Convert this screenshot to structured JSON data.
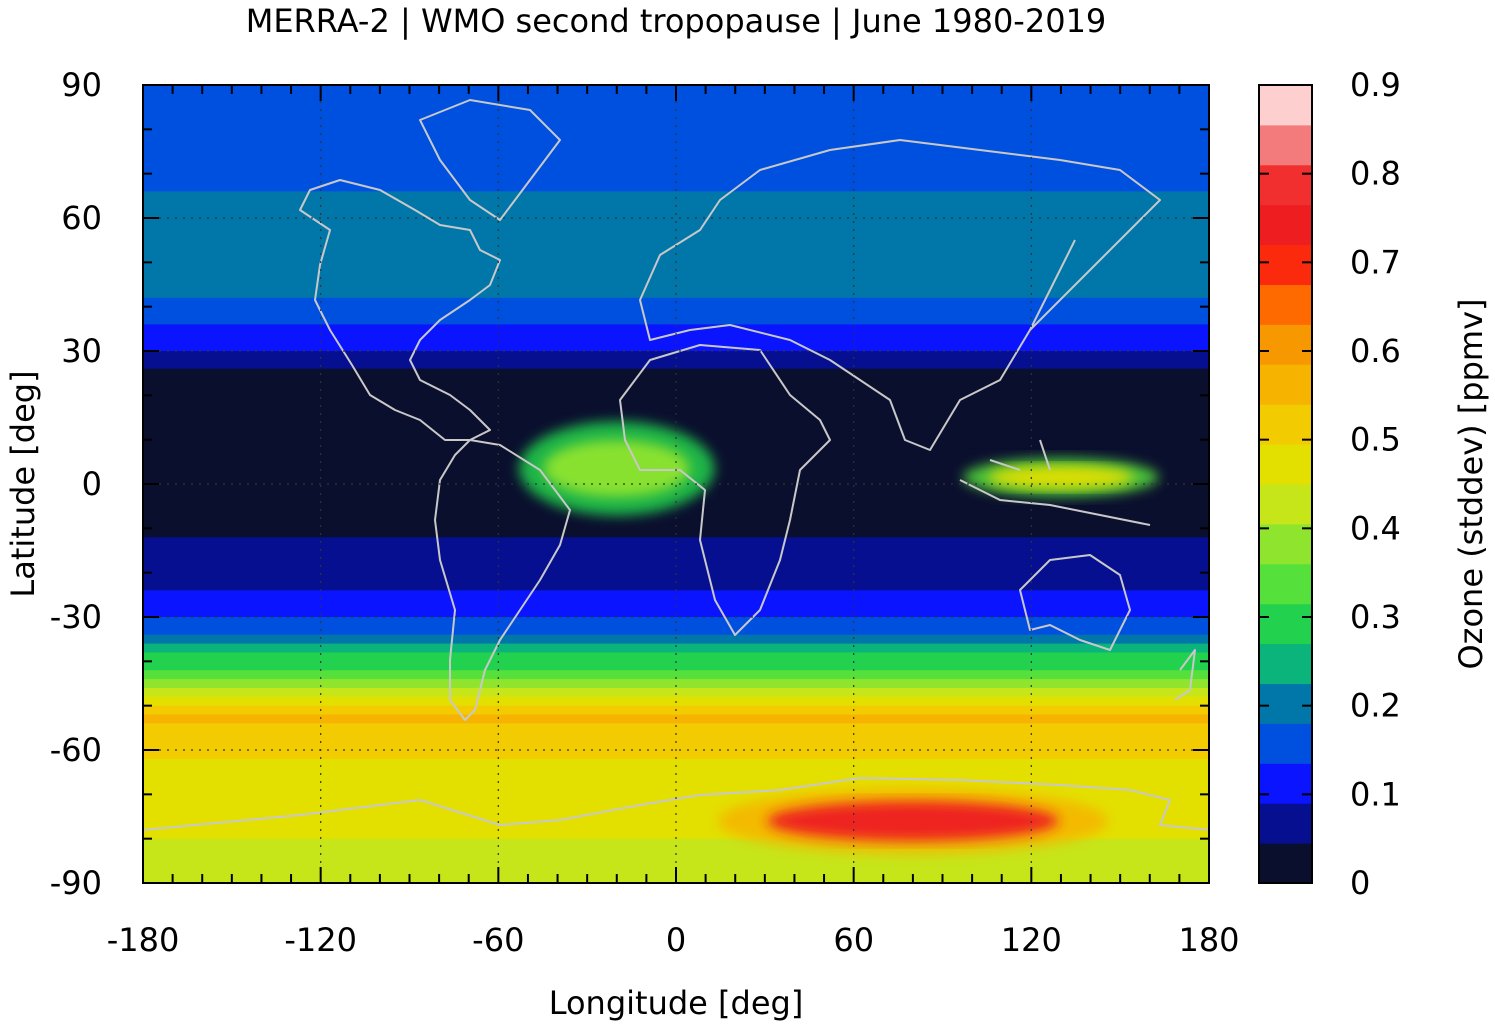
{
  "chart_data": {
    "type": "heatmap",
    "title": "MERRA-2 | WMO second tropopause | June 1980-2019",
    "xlabel": "Longitude [deg]",
    "ylabel": "Latitude [deg]",
    "colorbar_label": "Ozone (stddev) [ppmv]",
    "xlim": [
      -180,
      180
    ],
    "ylim": [
      -90,
      90
    ],
    "x_ticks": [
      -180,
      -120,
      -60,
      0,
      60,
      120,
      180
    ],
    "y_ticks": [
      -90,
      -60,
      -30,
      0,
      30,
      60,
      90
    ],
    "x_tick_labels": [
      "-180",
      "-120",
      "-60",
      "0",
      "60",
      "120",
      "180"
    ],
    "y_tick_labels": [
      "-90",
      "-60",
      "-30",
      "0",
      "30",
      "60",
      "90"
    ],
    "grid": true,
    "colorbar": {
      "range": [
        0,
        0.9
      ],
      "step": 0.045,
      "ticks": [
        0,
        0.1,
        0.2,
        0.3,
        0.4,
        0.5,
        0.6,
        0.7,
        0.8,
        0.9
      ],
      "tick_labels": [
        "0",
        "0.1",
        "0.2",
        "0.3",
        "0.4",
        "0.5",
        "0.6",
        "0.7",
        "0.8",
        "0.9"
      ],
      "colors": [
        "#0b0f2e",
        "#050f8f",
        "#0a14ff",
        "#0050e0",
        "#0077a8",
        "#0bb47a",
        "#22d24e",
        "#55e03c",
        "#8fe42e",
        "#c6e61a",
        "#e3e000",
        "#f2cc00",
        "#f6b400",
        "#f79800",
        "#fe6a00",
        "#fb2a0c",
        "#ee1e20",
        "#f12f2f",
        "#f37b7b",
        "#fdcfcf"
      ]
    },
    "latitude_profile": [
      {
        "lat": 90,
        "value": 0.16
      },
      {
        "lat": 75,
        "value": 0.14
      },
      {
        "lat": 60,
        "value": 0.2
      },
      {
        "lat": 45,
        "value": 0.2
      },
      {
        "lat": 35,
        "value": 0.13
      },
      {
        "lat": 25,
        "value": 0.03
      },
      {
        "lat": 10,
        "value": 0.02
      },
      {
        "lat": 0,
        "value": 0.03
      },
      {
        "lat": -15,
        "value": 0.05
      },
      {
        "lat": -25,
        "value": 0.09
      },
      {
        "lat": -35,
        "value": 0.2
      },
      {
        "lat": -45,
        "value": 0.38
      },
      {
        "lat": -52,
        "value": 0.55
      },
      {
        "lat": -60,
        "value": 0.5
      },
      {
        "lat": -70,
        "value": 0.45
      },
      {
        "lat": -80,
        "value": 0.45
      },
      {
        "lat": -90,
        "value": 0.44
      }
    ],
    "regional_maxima": [
      {
        "lon_range": [
          20,
          140
        ],
        "lat_range": [
          -82,
          -70
        ],
        "value": 0.72
      },
      {
        "lon_range": [
          -50,
          10
        ],
        "lat_range": [
          -5,
          12
        ],
        "value": 0.4
      },
      {
        "lon_range": [
          100,
          160
        ],
        "lat_range": [
          -2,
          5
        ],
        "value": 0.45
      }
    ]
  }
}
